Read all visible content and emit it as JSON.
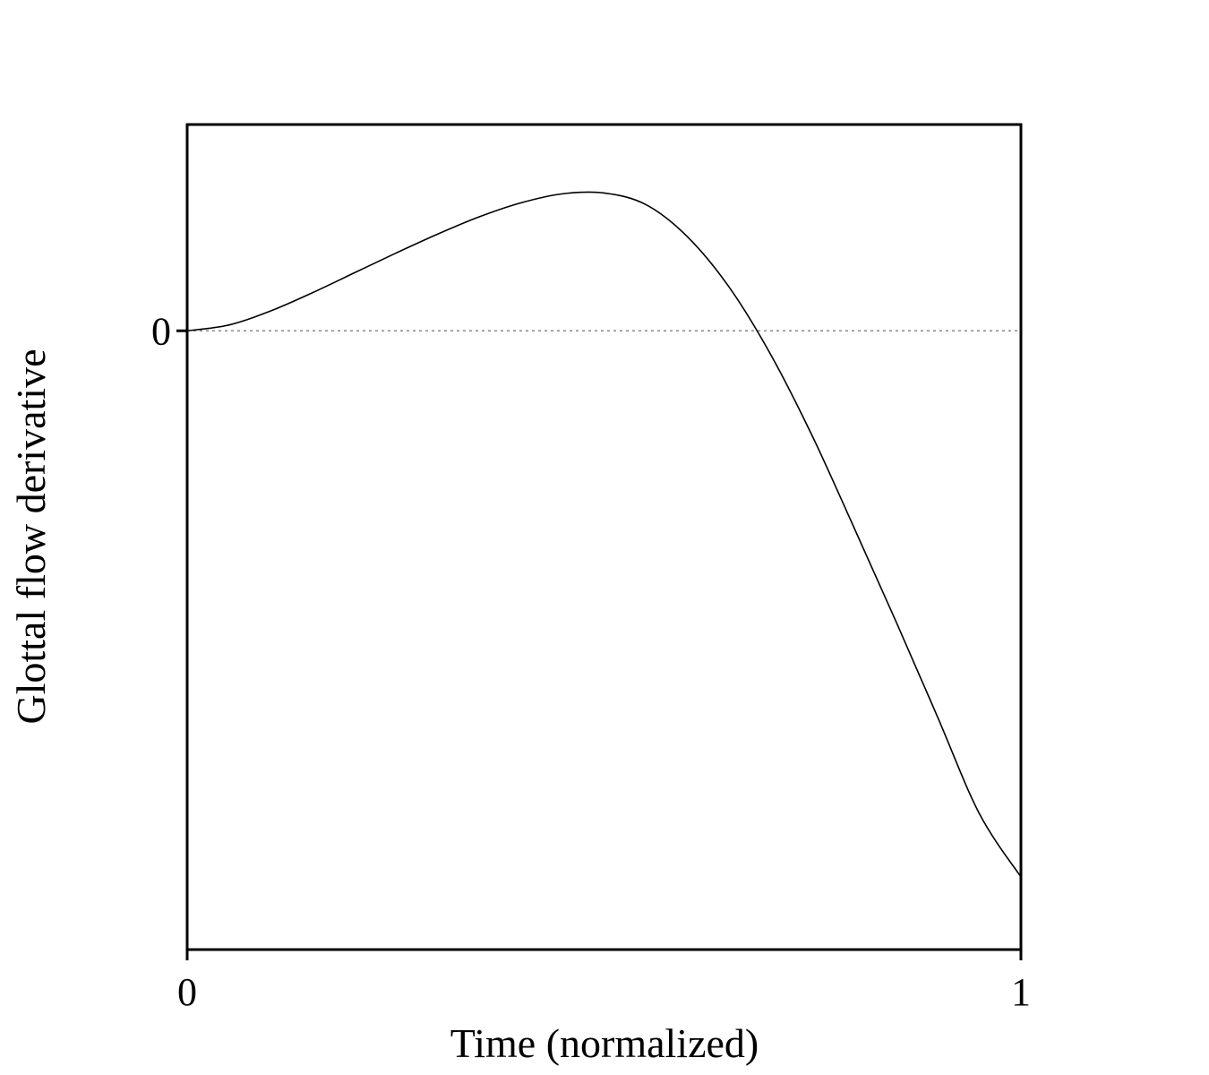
{
  "chart_data": {
    "type": "line",
    "title": "",
    "xlabel": "Time (normalized)",
    "ylabel": "Glottal flow derivative",
    "xlim": [
      0,
      1
    ],
    "ylim": [
      -0.75,
      0.25
    ],
    "x_ticks": [
      {
        "value": 0,
        "label": "0"
      },
      {
        "value": 1,
        "label": "1"
      }
    ],
    "y_ticks": [
      {
        "value": 0,
        "label": "0"
      }
    ],
    "reference_line": {
      "y": 0,
      "style": "dotted",
      "color": "#888888"
    },
    "grid": false,
    "legend": "none",
    "series": [
      {
        "color": "#000000",
        "x": [
          0,
          0.05,
          0.1,
          0.15,
          0.2,
          0.25,
          0.3,
          0.35,
          0.4,
          0.45,
          0.5,
          0.55,
          0.6,
          0.65,
          0.7,
          0.75,
          0.8,
          0.85,
          0.9,
          0.95,
          1
        ],
        "y": [
          0,
          0.007,
          0.024,
          0.046,
          0.07,
          0.094,
          0.117,
          0.138,
          0.155,
          0.166,
          0.167,
          0.153,
          0.114,
          0.053,
          -0.029,
          -0.128,
          -0.239,
          -0.352,
          -0.468,
          -0.585,
          -0.662
        ]
      }
    ]
  }
}
